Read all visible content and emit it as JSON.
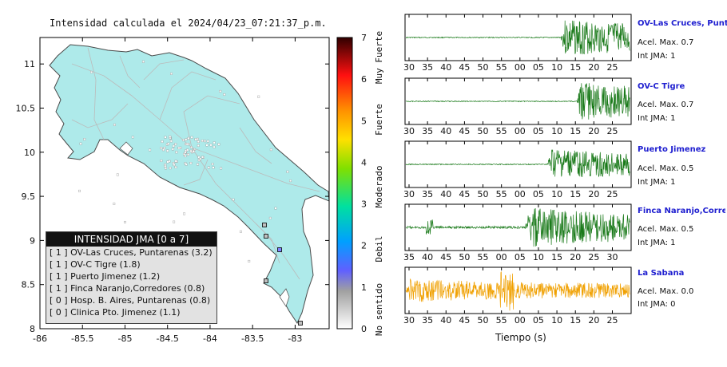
{
  "title": "Intensidad calculada el 2024/04/23_07:21:37_p.m.",
  "map": {
    "x_ticks": [
      "-86",
      "-85.5",
      "-85",
      "-84.5",
      "-84",
      "-83.5",
      "-83"
    ],
    "y_ticks": [
      "11",
      "10.5",
      "10",
      "9.5",
      "9",
      "8.5",
      "8"
    ],
    "colors": {
      "sea": "#ffffff",
      "land": "#aeeaea",
      "coast": "#4a4a4a",
      "roads": "#bbbbbb",
      "border": "#000000"
    }
  },
  "colorbar": {
    "ticks": [
      "0",
      "1",
      "2",
      "3",
      "4",
      "5",
      "6",
      "7"
    ],
    "labels": [
      "No sentido",
      "Debil",
      "Moderado",
      "Fuerte",
      "Muy Fuerte"
    ]
  },
  "legend": {
    "title": "INTENSIDAD JMA [0 a 7]",
    "rows": [
      "[ 1 ]  OV-Las Cruces, Puntarenas (3.2)",
      "[ 1 ]  OV-C Tigre (1.8)",
      "[ 1 ]  Puerto Jimenez (1.2)",
      "[ 1 ]  Finca Naranjo,Corredores (0.8)",
      "[ 0 ]  Hosp. B. Aires, Puntarenas (0.8)",
      "[ 0 ]  Clinica Pto. Jimenez (1.1)"
    ]
  },
  "traces": [
    {
      "name": "OV-Las Cruces, Puntar",
      "acc": "Acel. Max. 0.7",
      "int": "Int JMA: 1",
      "color": "#1a7a1a",
      "ticks": [
        "30",
        "35",
        "40",
        "45",
        "50",
        "55",
        "00",
        "05",
        "10",
        "15",
        "20",
        "25"
      ],
      "onset": 0.69,
      "amp": 0.85,
      "quiet": 0.02
    },
    {
      "name": "OV-C Tigre",
      "acc": "Acel. Max. 0.7",
      "int": "Int JMA: 1",
      "color": "#1a7a1a",
      "ticks": [
        "30",
        "35",
        "40",
        "45",
        "50",
        "55",
        "00",
        "05",
        "10",
        "15",
        "20",
        "25"
      ],
      "onset": 0.76,
      "amp": 0.85,
      "quiet": 0.02
    },
    {
      "name": "Puerto Jimenez",
      "acc": "Acel. Max. 0.5",
      "int": "Int JMA: 1",
      "color": "#1a7a1a",
      "ticks": [
        "30",
        "35",
        "40",
        "45",
        "50",
        "55",
        "00",
        "05",
        "10",
        "15",
        "20",
        "25"
      ],
      "onset": 0.63,
      "amp": 0.7,
      "quiet": 0.02
    },
    {
      "name": "Finca Naranjo,Corredor",
      "acc": "Acel. Max. 0.5",
      "int": "Int JMA: 1",
      "color": "#1a7a1a",
      "ticks": [
        "35",
        "40",
        "45",
        "50",
        "55",
        "00",
        "05",
        "10",
        "15",
        "20",
        "25",
        "30"
      ],
      "onset": 0.53,
      "amp": 0.9,
      "quiet": 0.05
    },
    {
      "name": "La Sabana",
      "acc": "Acel. Max. 0.0",
      "int": "Int JMA: 0",
      "color": "#f0a000",
      "ticks": [
        "30",
        "35",
        "40",
        "45",
        "50",
        "55",
        "00",
        "05",
        "10",
        "15",
        "20",
        "25"
      ],
      "onset": 0.0,
      "amp": 0.55,
      "quiet": 0.55
    }
  ],
  "xlabel": "Tiempo (s)",
  "chart_data": [
    {
      "type": "scatter",
      "title": "Intensidad calculada el 2024/04/23_07:21:37_p.m.",
      "xlim": [
        -86,
        -82.6
      ],
      "ylim": [
        8,
        11.3
      ],
      "stations": [
        {
          "label": "OV-Las Cruces, Puntarenas",
          "intensity": 1,
          "value": 3.2
        },
        {
          "label": "OV-C Tigre",
          "intensity": 1,
          "value": 1.8
        },
        {
          "label": "Puerto Jimenez",
          "intensity": 1,
          "value": 1.2
        },
        {
          "label": "Finca Naranjo,Corredores",
          "intensity": 1,
          "value": 0.8
        },
        {
          "label": "Hosp. B. Aires, Puntarenas",
          "intensity": 0,
          "value": 0.8
        },
        {
          "label": "Clinica Pto. Jimenez",
          "intensity": 0,
          "value": 1.1
        }
      ]
    },
    {
      "type": "line",
      "xlabel": "Tiempo (s)",
      "series": [
        {
          "name": "OV-Las Cruces, Puntar",
          "peak_acc": 0.7,
          "jma": 1
        },
        {
          "name": "OV-C Tigre",
          "peak_acc": 0.7,
          "jma": 1
        },
        {
          "name": "Puerto Jimenez",
          "peak_acc": 0.5,
          "jma": 1
        },
        {
          "name": "Finca Naranjo,Corredor",
          "peak_acc": 0.5,
          "jma": 1
        },
        {
          "name": "La Sabana",
          "peak_acc": 0.0,
          "jma": 0
        }
      ]
    }
  ]
}
